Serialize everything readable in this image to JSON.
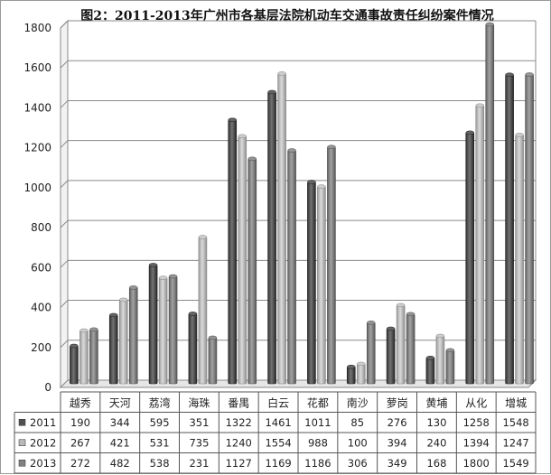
{
  "chart_data": {
    "type": "bar",
    "title": "图2：2011-2013年广州市各基层法院机动车交通事故责任纠纷案件情况",
    "categories": [
      "越秀",
      "天河",
      "荔湾",
      "海珠",
      "番禺",
      "白云",
      "花都",
      "南沙",
      "萝岗",
      "黄埔",
      "从化",
      "增城"
    ],
    "series": [
      {
        "name": "2011",
        "values": [
          190,
          344,
          595,
          351,
          1322,
          1461,
          1011,
          85,
          276,
          130,
          1258,
          1548
        ]
      },
      {
        "name": "2012",
        "values": [
          267,
          421,
          531,
          735,
          1240,
          1554,
          988,
          100,
          394,
          240,
          1394,
          1247
        ]
      },
      {
        "name": "2013",
        "values": [
          272,
          482,
          538,
          231,
          1127,
          1169,
          1186,
          306,
          349,
          168,
          1800,
          1549
        ]
      }
    ],
    "ylim": [
      0,
      1800
    ],
    "yticks": [
      0,
      200,
      400,
      600,
      800,
      1000,
      1200,
      1400,
      1600,
      1800
    ],
    "grid": true,
    "legend": "data-table-left",
    "colors": {
      "2011": "#505050",
      "2012": "#b8b8b8",
      "2013": "#808080"
    }
  }
}
